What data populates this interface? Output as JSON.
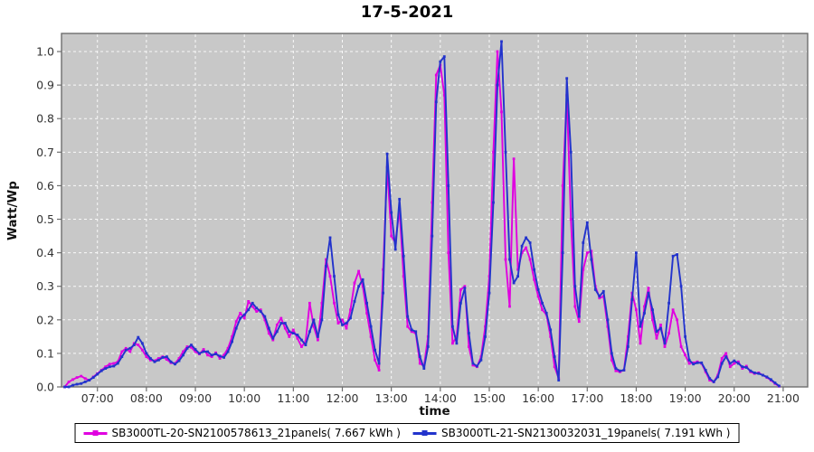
{
  "title": "17-5-2021",
  "chart_data": {
    "type": "line",
    "title": "17-5-2021",
    "xlabel": "time",
    "ylabel": "Watt/Wp",
    "legend_position": "bottom",
    "grid": "white dashed gridlines on gray plot background",
    "plot_bg": "#c8c8c8",
    "grid_color": "#ffffff",
    "border_color": "#6e6e6e",
    "tick_label_color": "#333333",
    "x_ticks": [
      "07:00",
      "08:00",
      "09:00",
      "10:00",
      "11:00",
      "12:00",
      "13:00",
      "14:00",
      "15:00",
      "16:00",
      "17:00",
      "18:00",
      "19:00",
      "20:00",
      "21:00"
    ],
    "y_ticks": [
      "0.0",
      "0.1",
      "0.2",
      "0.3",
      "0.4",
      "0.5",
      "0.6",
      "0.7",
      "0.8",
      "0.9",
      "1.0"
    ],
    "xlim_minutes": [
      376,
      1290
    ],
    "ylim": [
      0,
      1.054
    ],
    "x": [
      "06:20",
      "06:25",
      "06:30",
      "06:35",
      "06:40",
      "06:45",
      "06:50",
      "06:55",
      "07:00",
      "07:05",
      "07:10",
      "07:15",
      "07:20",
      "07:25",
      "07:30",
      "07:35",
      "07:40",
      "07:45",
      "07:50",
      "07:55",
      "08:00",
      "08:05",
      "08:10",
      "08:15",
      "08:20",
      "08:25",
      "08:30",
      "08:35",
      "08:40",
      "08:45",
      "08:50",
      "08:55",
      "09:00",
      "09:05",
      "09:10",
      "09:15",
      "09:20",
      "09:25",
      "09:30",
      "09:35",
      "09:40",
      "09:45",
      "09:50",
      "09:55",
      "10:00",
      "10:05",
      "10:10",
      "10:15",
      "10:20",
      "10:25",
      "10:30",
      "10:35",
      "10:40",
      "10:45",
      "10:50",
      "10:55",
      "11:00",
      "11:05",
      "11:10",
      "11:15",
      "11:20",
      "11:25",
      "11:30",
      "11:35",
      "11:40",
      "11:45",
      "11:50",
      "11:55",
      "12:00",
      "12:05",
      "12:10",
      "12:15",
      "12:20",
      "12:25",
      "12:30",
      "12:35",
      "12:40",
      "12:45",
      "12:50",
      "12:55",
      "13:00",
      "13:05",
      "13:10",
      "13:15",
      "13:20",
      "13:25",
      "13:30",
      "13:35",
      "13:40",
      "13:45",
      "13:50",
      "13:55",
      "14:00",
      "14:05",
      "14:10",
      "14:15",
      "14:20",
      "14:25",
      "14:30",
      "14:35",
      "14:40",
      "14:45",
      "14:50",
      "14:55",
      "15:00",
      "15:05",
      "15:10",
      "15:15",
      "15:20",
      "15:25",
      "15:30",
      "15:35",
      "15:40",
      "15:45",
      "15:50",
      "15:55",
      "16:00",
      "16:05",
      "16:10",
      "16:15",
      "16:20",
      "16:25",
      "16:30",
      "16:35",
      "16:40",
      "16:45",
      "16:50",
      "16:55",
      "17:00",
      "17:05",
      "17:10",
      "17:15",
      "17:20",
      "17:25",
      "17:30",
      "17:35",
      "17:40",
      "17:45",
      "17:50",
      "17:55",
      "18:00",
      "18:05",
      "18:10",
      "18:15",
      "18:20",
      "18:25",
      "18:30",
      "18:35",
      "18:40",
      "18:45",
      "18:50",
      "18:55",
      "19:00",
      "19:05",
      "19:10",
      "19:15",
      "19:20",
      "19:25",
      "19:30",
      "19:35",
      "19:40",
      "19:45",
      "19:50",
      "19:55",
      "20:00",
      "20:05",
      "20:10",
      "20:15",
      "20:20",
      "20:25",
      "20:30",
      "20:35",
      "20:40",
      "20:45",
      "20:50",
      "20:55"
    ],
    "series": [
      {
        "name": "SB3000TL-20-SN2100578613_21panels( 7.667 kWh )",
        "color": "#e000e0",
        "values": [
          0.0,
          0.015,
          0.022,
          0.028,
          0.032,
          0.025,
          0.02,
          0.03,
          0.04,
          0.05,
          0.06,
          0.068,
          0.07,
          0.075,
          0.105,
          0.115,
          0.105,
          0.13,
          0.125,
          0.11,
          0.09,
          0.08,
          0.078,
          0.085,
          0.09,
          0.082,
          0.072,
          0.07,
          0.085,
          0.105,
          0.12,
          0.118,
          0.105,
          0.098,
          0.112,
          0.095,
          0.09,
          0.102,
          0.085,
          0.095,
          0.115,
          0.15,
          0.195,
          0.22,
          0.205,
          0.255,
          0.24,
          0.225,
          0.23,
          0.2,
          0.16,
          0.14,
          0.185,
          0.205,
          0.175,
          0.15,
          0.17,
          0.145,
          0.12,
          0.135,
          0.25,
          0.18,
          0.14,
          0.25,
          0.38,
          0.33,
          0.25,
          0.19,
          0.2,
          0.175,
          0.23,
          0.31,
          0.345,
          0.3,
          0.22,
          0.15,
          0.08,
          0.05,
          0.35,
          0.655,
          0.45,
          0.43,
          0.53,
          0.33,
          0.18,
          0.165,
          0.16,
          0.07,
          0.062,
          0.15,
          0.55,
          0.93,
          0.96,
          0.87,
          0.4,
          0.13,
          0.15,
          0.29,
          0.3,
          0.12,
          0.065,
          0.06,
          0.09,
          0.18,
          0.33,
          0.7,
          1.0,
          0.82,
          0.38,
          0.24,
          0.68,
          0.35,
          0.4,
          0.415,
          0.38,
          0.32,
          0.27,
          0.23,
          0.215,
          0.15,
          0.06,
          0.025,
          0.6,
          0.87,
          0.5,
          0.24,
          0.195,
          0.35,
          0.4,
          0.405,
          0.3,
          0.265,
          0.27,
          0.18,
          0.08,
          0.048,
          0.045,
          0.05,
          0.15,
          0.28,
          0.23,
          0.13,
          0.24,
          0.295,
          0.2,
          0.145,
          0.185,
          0.12,
          0.16,
          0.23,
          0.2,
          0.12,
          0.095,
          0.07,
          0.072,
          0.075,
          0.07,
          0.045,
          0.02,
          0.015,
          0.035,
          0.085,
          0.1,
          0.06,
          0.07,
          0.075,
          0.055,
          0.062,
          0.045,
          0.04,
          0.042,
          0.035,
          0.028,
          0.02,
          0.01,
          0.002
        ]
      },
      {
        "name": "SB3000TL-21-SN2130032031_19panels( 7.191 kWh )",
        "color": "#2233cc",
        "values": [
          0.0,
          0.0,
          0.005,
          0.008,
          0.01,
          0.015,
          0.02,
          0.028,
          0.038,
          0.048,
          0.055,
          0.06,
          0.062,
          0.07,
          0.09,
          0.11,
          0.115,
          0.125,
          0.148,
          0.13,
          0.1,
          0.085,
          0.075,
          0.08,
          0.088,
          0.09,
          0.075,
          0.068,
          0.078,
          0.095,
          0.115,
          0.125,
          0.112,
          0.1,
          0.105,
          0.105,
          0.095,
          0.098,
          0.092,
          0.088,
          0.105,
          0.135,
          0.175,
          0.205,
          0.215,
          0.23,
          0.25,
          0.235,
          0.225,
          0.21,
          0.175,
          0.145,
          0.165,
          0.19,
          0.19,
          0.165,
          0.16,
          0.155,
          0.14,
          0.125,
          0.165,
          0.2,
          0.15,
          0.2,
          0.36,
          0.445,
          0.33,
          0.215,
          0.185,
          0.19,
          0.205,
          0.255,
          0.3,
          0.32,
          0.25,
          0.18,
          0.11,
          0.07,
          0.28,
          0.695,
          0.52,
          0.41,
          0.56,
          0.39,
          0.21,
          0.17,
          0.165,
          0.09,
          0.055,
          0.12,
          0.45,
          0.85,
          0.97,
          0.985,
          0.6,
          0.18,
          0.13,
          0.25,
          0.295,
          0.16,
          0.07,
          0.062,
          0.08,
          0.15,
          0.28,
          0.55,
          0.9,
          1.03,
          0.7,
          0.38,
          0.31,
          0.33,
          0.42,
          0.445,
          0.43,
          0.35,
          0.29,
          0.25,
          0.22,
          0.17,
          0.09,
          0.02,
          0.4,
          0.92,
          0.7,
          0.3,
          0.21,
          0.43,
          0.49,
          0.38,
          0.29,
          0.27,
          0.285,
          0.2,
          0.1,
          0.055,
          0.048,
          0.05,
          0.12,
          0.26,
          0.4,
          0.18,
          0.22,
          0.28,
          0.23,
          0.165,
          0.175,
          0.13,
          0.25,
          0.39,
          0.395,
          0.3,
          0.15,
          0.08,
          0.068,
          0.072,
          0.072,
          0.05,
          0.025,
          0.015,
          0.03,
          0.07,
          0.09,
          0.07,
          0.078,
          0.07,
          0.06,
          0.058,
          0.048,
          0.042,
          0.04,
          0.035,
          0.03,
          0.022,
          0.012,
          0.003
        ]
      }
    ]
  }
}
